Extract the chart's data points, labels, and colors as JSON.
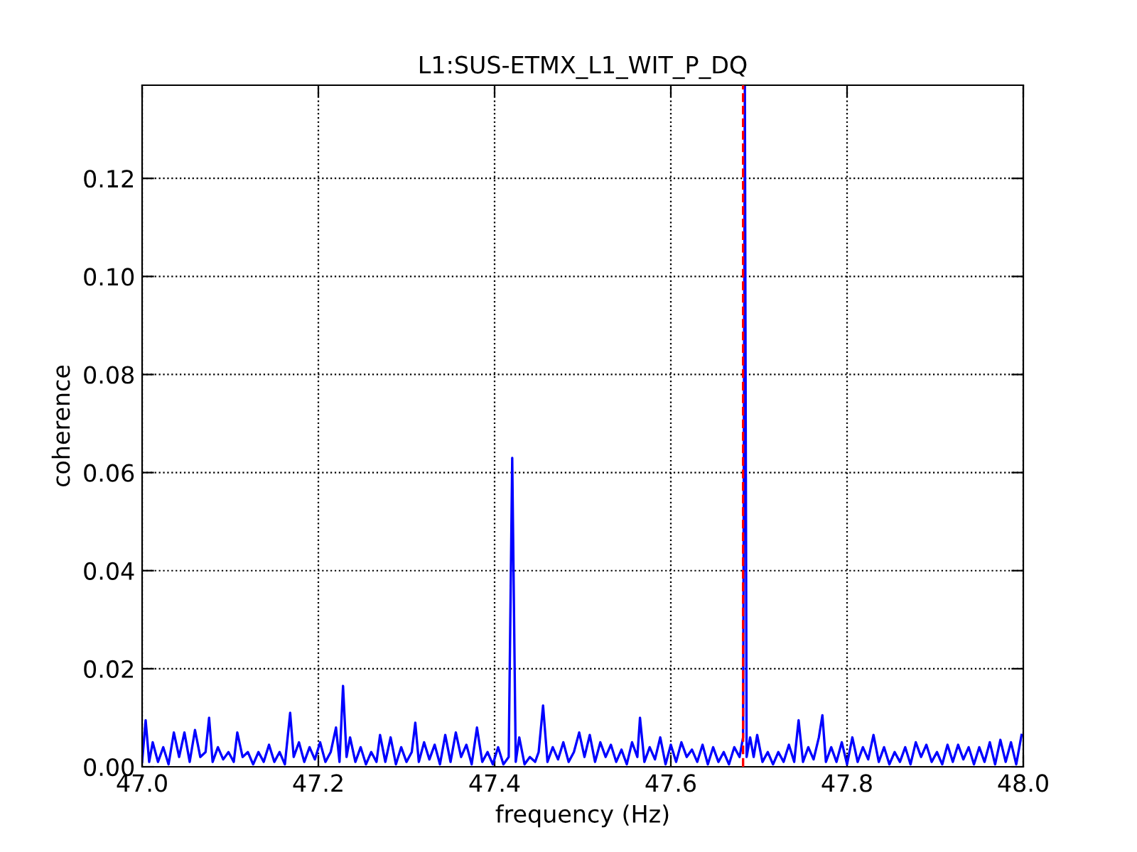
{
  "chart_data": {
    "type": "line",
    "title": "L1:SUS-ETMX_L1_WIT_P_DQ",
    "xlabel": "frequency (Hz)",
    "ylabel": "coherence",
    "x": [
      47.0,
      47.004,
      47.008,
      47.012,
      47.018,
      47.024,
      47.03,
      47.036,
      47.042,
      47.048,
      47.054,
      47.06,
      47.066,
      47.072,
      47.076,
      47.08,
      47.086,
      47.092,
      47.098,
      47.104,
      47.108,
      47.114,
      47.12,
      47.126,
      47.132,
      47.138,
      47.144,
      47.15,
      47.156,
      47.162,
      47.168,
      47.172,
      47.178,
      47.184,
      47.19,
      47.196,
      47.202,
      47.208,
      47.214,
      47.22,
      47.224,
      47.228,
      47.232,
      47.236,
      47.242,
      47.248,
      47.254,
      47.26,
      47.266,
      47.27,
      47.276,
      47.282,
      47.288,
      47.294,
      47.3,
      47.306,
      47.31,
      47.314,
      47.32,
      47.326,
      47.332,
      47.338,
      47.344,
      47.35,
      47.356,
      47.362,
      47.368,
      47.374,
      47.38,
      47.386,
      47.392,
      47.398,
      47.404,
      47.41,
      47.416,
      47.42,
      47.424,
      47.428,
      47.434,
      47.44,
      47.446,
      47.45,
      47.455,
      47.46,
      47.466,
      47.472,
      47.478,
      47.484,
      47.49,
      47.496,
      47.502,
      47.508,
      47.514,
      47.52,
      47.526,
      47.532,
      47.538,
      47.544,
      47.55,
      47.556,
      47.562,
      47.565,
      47.57,
      47.576,
      47.582,
      47.588,
      47.594,
      47.6,
      47.606,
      47.612,
      47.618,
      47.624,
      47.63,
      47.636,
      47.642,
      47.648,
      47.654,
      47.66,
      47.666,
      47.672,
      47.678,
      47.682,
      47.684,
      47.686,
      47.69,
      47.694,
      47.698,
      47.704,
      47.71,
      47.716,
      47.722,
      47.728,
      47.734,
      47.74,
      47.745,
      47.75,
      47.756,
      47.762,
      47.768,
      47.772,
      47.776,
      47.782,
      47.788,
      47.794,
      47.8,
      47.806,
      47.812,
      47.818,
      47.824,
      47.83,
      47.836,
      47.842,
      47.848,
      47.854,
      47.86,
      47.866,
      47.872,
      47.878,
      47.884,
      47.89,
      47.896,
      47.902,
      47.908,
      47.914,
      47.92,
      47.926,
      47.932,
      47.938,
      47.944,
      47.95,
      47.956,
      47.962,
      47.968,
      47.974,
      47.98,
      47.986,
      47.992,
      47.998
    ],
    "series": [
      {
        "color": "#0000ff",
        "values": [
          0.001,
          0.0095,
          0.001,
          0.005,
          0.001,
          0.004,
          0.0005,
          0.007,
          0.002,
          0.007,
          0.001,
          0.0075,
          0.002,
          0.003,
          0.01,
          0.001,
          0.004,
          0.0015,
          0.003,
          0.001,
          0.007,
          0.002,
          0.003,
          0.0005,
          0.003,
          0.001,
          0.0045,
          0.001,
          0.003,
          0.0005,
          0.011,
          0.002,
          0.005,
          0.001,
          0.004,
          0.0015,
          0.005,
          0.001,
          0.003,
          0.008,
          0.001,
          0.0165,
          0.002,
          0.006,
          0.001,
          0.004,
          0.0005,
          0.003,
          0.001,
          0.0065,
          0.001,
          0.006,
          0.0005,
          0.004,
          0.001,
          0.003,
          0.009,
          0.001,
          0.005,
          0.0015,
          0.0045,
          0.0005,
          0.0065,
          0.001,
          0.007,
          0.002,
          0.0045,
          0.0005,
          0.008,
          0.001,
          0.003,
          0.0005,
          0.004,
          0.0005,
          0.002,
          0.063,
          0.001,
          0.006,
          0.0005,
          0.002,
          0.001,
          0.003,
          0.0125,
          0.001,
          0.004,
          0.0015,
          0.005,
          0.001,
          0.003,
          0.007,
          0.002,
          0.0065,
          0.001,
          0.005,
          0.002,
          0.0045,
          0.001,
          0.0035,
          0.0005,
          0.005,
          0.002,
          0.01,
          0.001,
          0.004,
          0.0015,
          0.006,
          0.0005,
          0.0045,
          0.001,
          0.005,
          0.002,
          0.0035,
          0.001,
          0.0045,
          0.0005,
          0.004,
          0.001,
          0.003,
          0.0005,
          0.004,
          0.002,
          0.006,
          0.139,
          0.002,
          0.006,
          0.002,
          0.0065,
          0.001,
          0.003,
          0.0005,
          0.003,
          0.001,
          0.0045,
          0.001,
          0.0095,
          0.001,
          0.004,
          0.0015,
          0.006,
          0.0105,
          0.001,
          0.004,
          0.001,
          0.005,
          0.0005,
          0.006,
          0.001,
          0.004,
          0.0015,
          0.0065,
          0.001,
          0.004,
          0.0005,
          0.003,
          0.001,
          0.004,
          0.0005,
          0.005,
          0.002,
          0.0045,
          0.001,
          0.003,
          0.0005,
          0.0045,
          0.001,
          0.0045,
          0.0015,
          0.004,
          0.0005,
          0.004,
          0.001,
          0.005,
          0.0005,
          0.0055,
          0.001,
          0.005,
          0.0005,
          0.0065
        ]
      }
    ],
    "xlim": [
      47.0,
      48.0
    ],
    "ylim": [
      0,
      0.139
    ],
    "xticks": [
      {
        "value": 47.0,
        "label": "47.0"
      },
      {
        "value": 47.2,
        "label": "47.2"
      },
      {
        "value": 47.4,
        "label": "47.4"
      },
      {
        "value": 47.6,
        "label": "47.6"
      },
      {
        "value": 47.8,
        "label": "47.8"
      },
      {
        "value": 48.0,
        "label": "48.0"
      }
    ],
    "yticks": [
      {
        "value": 0,
        "label": "0.00"
      },
      {
        "value": 0.02,
        "label": "0.02"
      },
      {
        "value": 0.04,
        "label": "0.04"
      },
      {
        "value": 0.06,
        "label": "0.06"
      },
      {
        "value": 0.08,
        "label": "0.08"
      },
      {
        "value": 0.1,
        "label": "0.10"
      },
      {
        "value": 0.12,
        "label": "0.12"
      }
    ],
    "ref_lines": [
      {
        "axis": "x",
        "value": 47.682,
        "color": "#ff0000",
        "line_style": "dashed"
      }
    ],
    "grid": true,
    "line_style": "solid",
    "marker": "none",
    "legend": false
  }
}
